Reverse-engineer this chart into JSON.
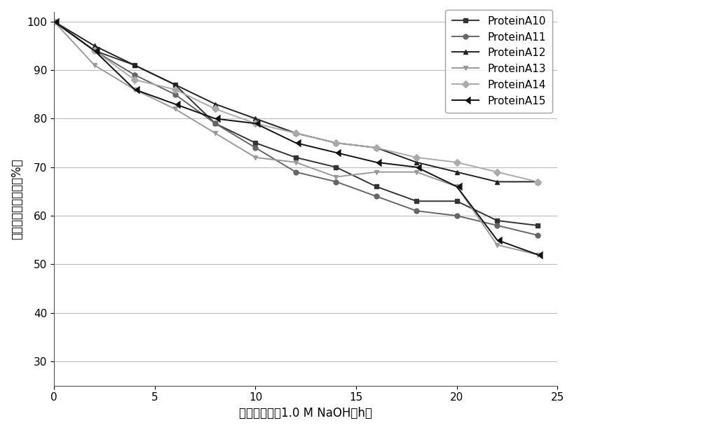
{
  "series": [
    {
      "label": "ProteinA10",
      "color": "#333333",
      "marker": "s",
      "markersize": 5,
      "linestyle": "-",
      "x": [
        0,
        2,
        4,
        6,
        8,
        10,
        12,
        14,
        16,
        18,
        20,
        22,
        24
      ],
      "y": [
        100,
        94,
        91,
        87,
        79,
        75,
        72,
        70,
        66,
        63,
        63,
        59,
        58
      ]
    },
    {
      "label": "ProteinA11",
      "color": "#666666",
      "marker": "o",
      "markersize": 5,
      "linestyle": "-",
      "x": [
        0,
        2,
        4,
        6,
        8,
        10,
        12,
        14,
        16,
        18,
        20,
        22,
        24
      ],
      "y": [
        100,
        94,
        89,
        85,
        79,
        74,
        69,
        67,
        64,
        61,
        60,
        58,
        56
      ]
    },
    {
      "label": "ProteinA12",
      "color": "#222222",
      "marker": "^",
      "markersize": 5,
      "linestyle": "-",
      "x": [
        0,
        2,
        4,
        6,
        8,
        10,
        12,
        14,
        16,
        18,
        20,
        22,
        24
      ],
      "y": [
        100,
        95,
        91,
        87,
        83,
        80,
        77,
        75,
        74,
        71,
        69,
        67,
        67
      ]
    },
    {
      "label": "ProteinA13",
      "color": "#999999",
      "marker": "v",
      "markersize": 5,
      "linestyle": "-",
      "x": [
        0,
        2,
        4,
        6,
        8,
        10,
        12,
        14,
        16,
        18,
        20,
        22,
        24
      ],
      "y": [
        100,
        91,
        86,
        82,
        77,
        72,
        71,
        68,
        69,
        69,
        66,
        54,
        52
      ]
    },
    {
      "label": "ProteinA14",
      "color": "#aaaaaa",
      "marker": "D",
      "markersize": 5,
      "linestyle": "-",
      "x": [
        0,
        2,
        4,
        6,
        8,
        10,
        12,
        14,
        16,
        18,
        20,
        22,
        24
      ],
      "y": [
        100,
        94,
        88,
        86,
        82,
        79,
        77,
        75,
        74,
        72,
        71,
        69,
        67
      ]
    },
    {
      "label": "ProteinA15",
      "color": "#111111",
      "marker": 4,
      "markersize": 7,
      "linestyle": "-",
      "x": [
        0,
        2,
        4,
        6,
        8,
        10,
        12,
        14,
        16,
        18,
        20,
        22,
        24
      ],
      "y": [
        100,
        94,
        86,
        83,
        80,
        79,
        75,
        73,
        71,
        70,
        66,
        55,
        52
      ]
    }
  ],
  "xlabel": "碱处理时间（1.0 M NaOH，h）",
  "ylabel": "剩余动态结合载量（%）",
  "xlim": [
    0,
    25
  ],
  "ylim": [
    25,
    102
  ],
  "xticks": [
    0,
    5,
    10,
    15,
    20,
    25
  ],
  "yticks": [
    30,
    40,
    50,
    60,
    70,
    80,
    90,
    100
  ],
  "grid_color": "#bbbbbb",
  "background_color": "#ffffff",
  "line_width": 1.4,
  "font_size_label": 12,
  "font_size_tick": 11,
  "font_size_legend": 11
}
